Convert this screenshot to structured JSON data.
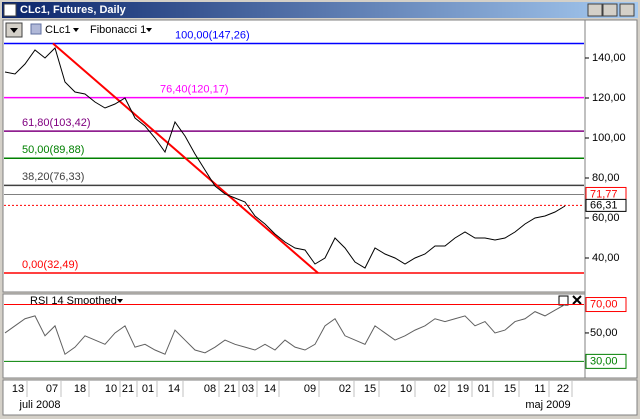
{
  "window": {
    "title": "CLc1, Futures, Daily"
  },
  "toolbar": {
    "symbol": "CLc1",
    "tool": "Fibonacci 1"
  },
  "price_panel": {
    "ylim": [
      24,
      159
    ],
    "yticks": [
      {
        "value": 140,
        "label": "140,00"
      },
      {
        "value": 120,
        "label": "120,00"
      },
      {
        "value": 100,
        "label": "100,00"
      },
      {
        "value": 80,
        "label": "80,00"
      },
      {
        "value": 60,
        "label": "60,00"
      },
      {
        "value": 40,
        "label": "40,00"
      }
    ],
    "fib_levels": [
      {
        "label": "100,00(147,26)",
        "value": 147.26,
        "color": "#0000ff"
      },
      {
        "label": "76,40(120,17)",
        "value": 120.17,
        "color": "#ff00ff"
      },
      {
        "label": "61,80(103,42)",
        "value": 103.42,
        "color": "#800080"
      },
      {
        "label": "50,00(89,88)",
        "value": 89.88,
        "color": "#008000"
      },
      {
        "label": "38,20(76,33)",
        "value": 76.33,
        "color": "#404040"
      },
      {
        "label": "0,00(32,49)",
        "value": 32.49,
        "color": "#ff0000"
      }
    ],
    "marker": {
      "value": 71.77,
      "label": "71,77"
    },
    "last_price": {
      "value": 66.31,
      "label": "66,31"
    },
    "closes": [
      133,
      132,
      137,
      144,
      140,
      145,
      128,
      123,
      122,
      118,
      115,
      117,
      120,
      110,
      106,
      100,
      93,
      108,
      101,
      92,
      84,
      76,
      72,
      70,
      68,
      61,
      57,
      52,
      48,
      45,
      44,
      37,
      40,
      50,
      45,
      38,
      35,
      45,
      42,
      40,
      37,
      40,
      42,
      46,
      46,
      50,
      53,
      50,
      50,
      49,
      50,
      53,
      57,
      60,
      61,
      63,
      66
    ]
  },
  "rsi_panel": {
    "title": "RSI 14 Smoothed",
    "ylim": [
      19,
      76
    ],
    "levels": [
      {
        "value": 70,
        "label": "70,00",
        "color": "#ff0000"
      },
      {
        "value": 50,
        "label": "50,00"
      },
      {
        "value": 30,
        "label": "30,00",
        "color": "#008000"
      }
    ],
    "values": [
      50,
      55,
      60,
      62,
      48,
      55,
      35,
      40,
      48,
      45,
      42,
      50,
      55,
      40,
      42,
      38,
      35,
      52,
      45,
      38,
      36,
      40,
      45,
      42,
      40,
      38,
      42,
      38,
      45,
      40,
      38,
      42,
      55,
      60,
      48,
      45,
      42,
      55,
      50,
      45,
      48,
      52,
      55,
      60,
      58,
      60,
      62,
      55,
      58,
      50,
      52,
      58,
      60,
      65,
      62,
      66,
      70
    ]
  },
  "x_axis": {
    "days": [
      "13",
      "07",
      "18",
      "10",
      "21",
      "01",
      "14",
      "08",
      "21",
      "03",
      "14",
      "09",
      "02",
      "15",
      "10",
      "02",
      "19",
      "01",
      "15",
      "11",
      "22"
    ],
    "months": [
      "juli 2008",
      "maj 2009"
    ]
  }
}
